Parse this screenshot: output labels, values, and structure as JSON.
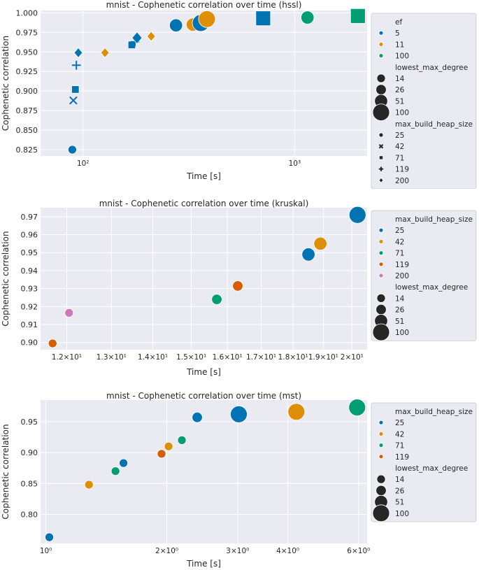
{
  "colors": {
    "blue": "#0173b2",
    "orange": "#de8f05",
    "green": "#029e73",
    "red": "#d55e00",
    "pink": "#cc78bc",
    "dark": "#262626"
  },
  "chart_data": [
    {
      "type": "scatter",
      "title": "mnist - Cophenetic correlation over time (hssl)",
      "xlabel": "Time [s]",
      "ylabel": "Cophenetic correlation",
      "xscale": "log",
      "xlim": [
        63,
        2200
      ],
      "ylim": [
        0.817,
        1.003
      ],
      "xticks": [
        100,
        1000
      ],
      "xtick_labels": [
        "10²",
        "10³"
      ],
      "yticks": [
        0.825,
        0.85,
        0.875,
        0.9,
        0.925,
        0.95,
        0.975,
        1.0
      ],
      "ytick_labels": [
        "0.825",
        "0.850",
        "0.875",
        "0.900",
        "0.925",
        "0.950",
        "0.975",
        "1.000"
      ],
      "legend": {
        "placement": "outside-right",
        "groups": [
          {
            "title": "ef",
            "kind": "color",
            "items": [
              {
                "label": "5",
                "color": "blue"
              },
              {
                "label": "11",
                "color": "orange"
              },
              {
                "label": "100",
                "color": "green"
              }
            ]
          },
          {
            "title": "lowest_max_degree",
            "kind": "size",
            "items": [
              {
                "label": "14",
                "size": 14
              },
              {
                "label": "26",
                "size": 26
              },
              {
                "label": "51",
                "size": 51
              },
              {
                "label": "100",
                "size": 100
              }
            ]
          },
          {
            "title": "max_build_heap_size",
            "kind": "marker",
            "items": [
              {
                "label": "25",
                "marker": "circle"
              },
              {
                "label": "42",
                "marker": "x"
              },
              {
                "label": "71",
                "marker": "square"
              },
              {
                "label": "119",
                "marker": "plus"
              },
              {
                "label": "200",
                "marker": "diamond"
              }
            ]
          }
        ]
      },
      "points": [
        {
          "x": 89,
          "y": 0.825,
          "ef": "5",
          "degree": 14,
          "heap": "25"
        },
        {
          "x": 90,
          "y": 0.888,
          "ef": "5",
          "degree": 14,
          "heap": "42"
        },
        {
          "x": 92,
          "y": 0.902,
          "ef": "5",
          "degree": 14,
          "heap": "71"
        },
        {
          "x": 93,
          "y": 0.933,
          "ef": "5",
          "degree": 14,
          "heap": "119"
        },
        {
          "x": 95,
          "y": 0.949,
          "ef": "5",
          "degree": 14,
          "heap": "200"
        },
        {
          "x": 127,
          "y": 0.949,
          "ef": "11",
          "degree": 14,
          "heap": "200"
        },
        {
          "x": 170,
          "y": 0.959,
          "ef": "5",
          "degree": 14,
          "heap": "71"
        },
        {
          "x": 176,
          "y": 0.963,
          "ef": "5",
          "degree": 14,
          "heap": "119"
        },
        {
          "x": 180,
          "y": 0.968,
          "ef": "5",
          "degree": 26,
          "heap": "200"
        },
        {
          "x": 210,
          "y": 0.97,
          "ef": "11",
          "degree": 14,
          "heap": "200"
        },
        {
          "x": 275,
          "y": 0.984,
          "ef": "5",
          "degree": 51,
          "heap": "25"
        },
        {
          "x": 330,
          "y": 0.985,
          "ef": "11",
          "degree": 51,
          "heap": "25"
        },
        {
          "x": 360,
          "y": 0.987,
          "ef": "5",
          "degree": 100,
          "heap": "25"
        },
        {
          "x": 385,
          "y": 0.992,
          "ef": "11",
          "degree": 100,
          "heap": "25"
        },
        {
          "x": 710,
          "y": 0.993,
          "ef": "5",
          "degree": 100,
          "heap": "71"
        },
        {
          "x": 1150,
          "y": 0.994,
          "ef": "100",
          "degree": 51,
          "heap": "25"
        },
        {
          "x": 1990,
          "y": 0.996,
          "ef": "100",
          "degree": 100,
          "heap": "71"
        }
      ]
    },
    {
      "type": "scatter",
      "title": "mnist - Cophenetic correlation over time (kruskal)",
      "xlabel": "Time [s]",
      "ylabel": "Cophenetic correlation",
      "xscale": "log",
      "xlim": [
        11.45,
        20.55
      ],
      "ylim": [
        0.896,
        0.975
      ],
      "xticks": [
        12,
        13,
        14,
        15,
        16,
        17,
        18,
        19,
        20
      ],
      "xtick_labels": [
        "1.2×10¹",
        "1.3×10¹",
        "1.4×10¹",
        "1.5×10¹",
        "1.6×10¹",
        "1.7×10¹",
        "1.8×10¹",
        "1.9×10¹",
        "2×10¹"
      ],
      "yticks": [
        0.9,
        0.91,
        0.92,
        0.93,
        0.94,
        0.95,
        0.96,
        0.97
      ],
      "ytick_labels": [
        "0.90",
        "0.91",
        "0.92",
        "0.93",
        "0.94",
        "0.95",
        "0.96",
        "0.97"
      ],
      "legend": {
        "placement": "outside-right",
        "groups": [
          {
            "title": "max_build_heap_size",
            "kind": "color",
            "items": [
              {
                "label": "25",
                "color": "blue"
              },
              {
                "label": "42",
                "color": "orange"
              },
              {
                "label": "71",
                "color": "green"
              },
              {
                "label": "119",
                "color": "red"
              },
              {
                "label": "200",
                "color": "pink"
              }
            ]
          },
          {
            "title": "lowest_max_degree",
            "kind": "size",
            "items": [
              {
                "label": "14",
                "size": 14
              },
              {
                "label": "26",
                "size": 26
              },
              {
                "label": "51",
                "size": 51
              },
              {
                "label": "100",
                "size": 100
              }
            ]
          }
        ]
      },
      "points": [
        {
          "x": 11.7,
          "y": 0.8995,
          "heap": "119",
          "degree": 14
        },
        {
          "x": 12.05,
          "y": 0.9165,
          "heap": "200",
          "degree": 14
        },
        {
          "x": 15.7,
          "y": 0.924,
          "heap": "71",
          "degree": 26
        },
        {
          "x": 16.3,
          "y": 0.9315,
          "heap": "119",
          "degree": 26
        },
        {
          "x": 18.5,
          "y": 0.949,
          "heap": "25",
          "degree": 51
        },
        {
          "x": 18.9,
          "y": 0.955,
          "heap": "42",
          "degree": 51
        },
        {
          "x": 20.2,
          "y": 0.971,
          "heap": "25",
          "degree": 100
        }
      ]
    },
    {
      "type": "scatter",
      "title": "mnist - Cophenetic correlation over time (mst)",
      "xlabel": "Time [s]",
      "ylabel": "Cophenetic correlation",
      "xscale": "log",
      "xlim": [
        0.97,
        6.3
      ],
      "ylim": [
        0.753,
        0.985
      ],
      "xticks": [
        1,
        2,
        3,
        4,
        6
      ],
      "xtick_labels": [
        "10⁰",
        "2×10⁰",
        "3×10⁰",
        "4×10⁰",
        "6×10⁰"
      ],
      "yticks": [
        0.8,
        0.85,
        0.9,
        0.95
      ],
      "ytick_labels": [
        "0.80",
        "0.85",
        "0.90",
        "0.95"
      ],
      "legend": {
        "placement": "outside-right",
        "groups": [
          {
            "title": "max_build_heap_size",
            "kind": "color",
            "items": [
              {
                "label": "25",
                "color": "blue"
              },
              {
                "label": "42",
                "color": "orange"
              },
              {
                "label": "71",
                "color": "green"
              },
              {
                "label": "119",
                "color": "red"
              }
            ]
          },
          {
            "title": "lowest_max_degree",
            "kind": "size",
            "items": [
              {
                "label": "14",
                "size": 14
              },
              {
                "label": "26",
                "size": 26
              },
              {
                "label": "51",
                "size": 51
              },
              {
                "label": "100",
                "size": 100
              }
            ]
          }
        ]
      },
      "points": [
        {
          "x": 1.02,
          "y": 0.763,
          "heap": "25",
          "degree": 14
        },
        {
          "x": 1.28,
          "y": 0.848,
          "heap": "42",
          "degree": 14
        },
        {
          "x": 1.49,
          "y": 0.87,
          "heap": "71",
          "degree": 14
        },
        {
          "x": 1.56,
          "y": 0.883,
          "heap": "25",
          "degree": 14
        },
        {
          "x": 1.94,
          "y": 0.898,
          "heap": "119",
          "degree": 14
        },
        {
          "x": 2.02,
          "y": 0.91,
          "heap": "42",
          "degree": 14
        },
        {
          "x": 2.18,
          "y": 0.92,
          "heap": "71",
          "degree": 14
        },
        {
          "x": 2.38,
          "y": 0.957,
          "heap": "25",
          "degree": 26
        },
        {
          "x": 3.02,
          "y": 0.962,
          "heap": "25",
          "degree": 100
        },
        {
          "x": 4.2,
          "y": 0.966,
          "heap": "42",
          "degree": 100
        },
        {
          "x": 5.95,
          "y": 0.973,
          "heap": "71",
          "degree": 100
        }
      ]
    }
  ]
}
